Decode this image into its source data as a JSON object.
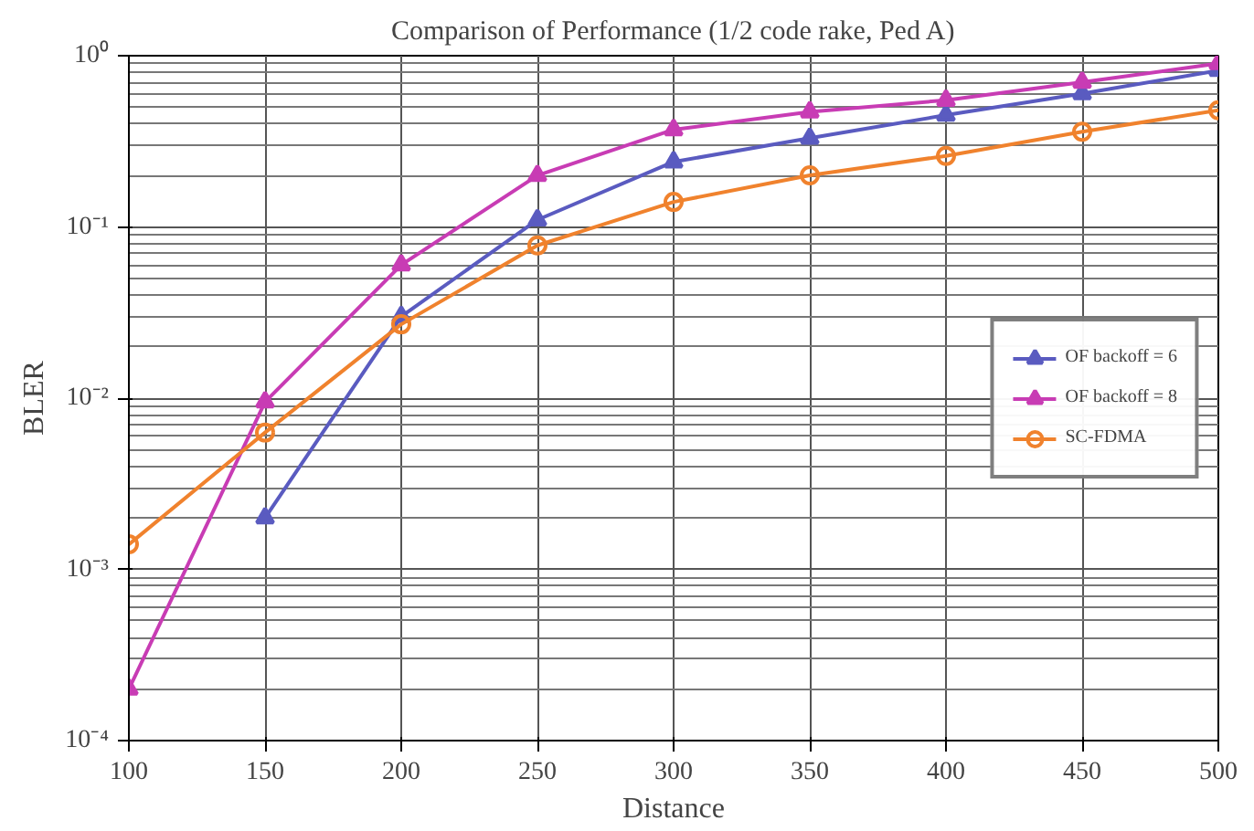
{
  "chart_data": {
    "type": "line",
    "title": "Comparison of Performance (1/2 code rake, Ped A)",
    "xlabel": "Distance",
    "ylabel": "BLER",
    "x": [
      100,
      150,
      200,
      250,
      300,
      350,
      400,
      450,
      500
    ],
    "series": [
      {
        "name": "OF backoff = 6",
        "color": "#5a5bc0",
        "marker": "triangle",
        "values": [
          null,
          0.002,
          0.03,
          0.11,
          0.24,
          0.33,
          0.45,
          0.6,
          0.82
        ]
      },
      {
        "name": "OF backoff = 8",
        "color": "#c83cb4",
        "marker": "triangle",
        "values": [
          0.0002,
          0.0095,
          0.06,
          0.2,
          0.37,
          0.47,
          0.55,
          0.7,
          0.9
        ]
      },
      {
        "name": "SC-FDMA",
        "color": "#f0822d",
        "marker": "circle",
        "values": [
          0.0014,
          0.0063,
          0.027,
          0.078,
          0.14,
          0.2,
          0.26,
          0.36,
          0.48
        ]
      }
    ],
    "log": "y",
    "xlim": [
      100,
      500
    ],
    "ylim": [
      0.0001,
      1
    ],
    "xticks": [
      100,
      150,
      200,
      250,
      300,
      350,
      400,
      450,
      500
    ],
    "yticks": [
      {
        "value": 0.0001,
        "label": "10⁻⁴"
      },
      {
        "value": 0.001,
        "label": "10⁻³"
      },
      {
        "value": 0.01,
        "label": "10⁻²"
      },
      {
        "value": 0.1,
        "label": "10⁻¹"
      },
      {
        "value": 1,
        "label": "10⁰"
      }
    ],
    "grid": true,
    "legend": "right",
    "line_style": "solid"
  }
}
